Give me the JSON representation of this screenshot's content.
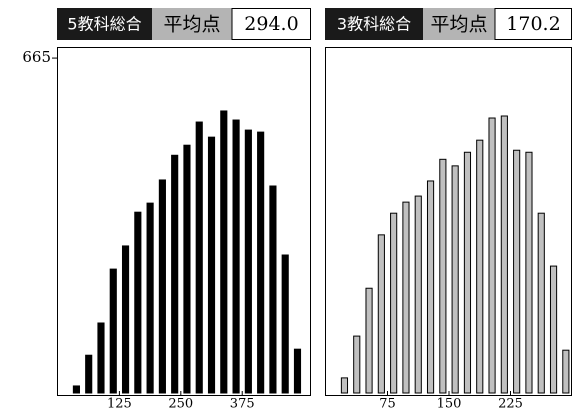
{
  "chart_data": [
    {
      "type": "histogram",
      "title": "5教科総合",
      "average_label": "平均点",
      "average": {
        "value": 294,
        "label": "294.0"
      },
      "bins": [
        25,
        50,
        75,
        100,
        125,
        150,
        175,
        200,
        225,
        250,
        275,
        300,
        325,
        350,
        375,
        400,
        425,
        450,
        475,
        500
      ],
      "values": [
        14,
        75,
        139,
        246,
        292,
        359,
        377,
        423,
        472,
        492,
        538,
        508,
        560,
        542,
        522,
        518,
        411,
        274,
        87
      ],
      "color": "#000000",
      "xlim": [
        0,
        515
      ],
      "xticks": [
        125,
        250,
        375
      ],
      "ylim": [
        0,
        687
      ],
      "yticks": [
        665
      ]
    },
    {
      "type": "histogram",
      "title": "3教科総合",
      "average_label": "平均点",
      "average": 170.2,
      "bins": [
        15,
        30,
        45,
        60,
        75,
        90,
        105,
        120,
        135,
        150,
        165,
        180,
        195,
        210,
        225,
        240,
        255,
        270,
        285,
        300
      ],
      "values": [
        30,
        113,
        208,
        314,
        357,
        379,
        391,
        421,
        464,
        451,
        478,
        502,
        546,
        550,
        482,
        478,
        357,
        252,
        85
      ],
      "color": "#c0c0c0",
      "xlim": [
        0,
        300
      ],
      "xticks": [
        75,
        150,
        225
      ],
      "ylim": [
        0,
        687
      ]
    }
  ]
}
